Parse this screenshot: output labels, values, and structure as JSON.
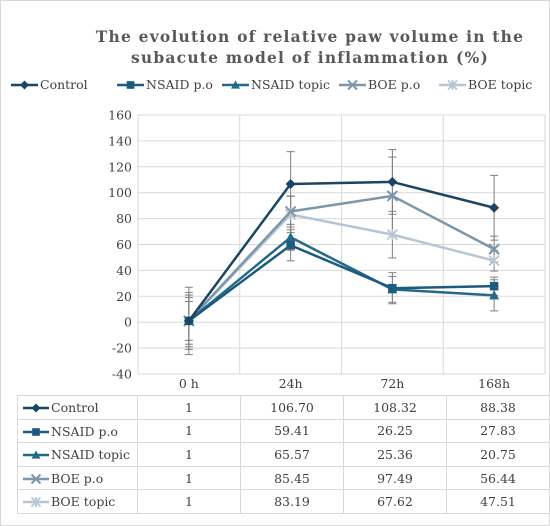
{
  "chart_data": {
    "type": "line",
    "title": "The evolution of relative paw volume in the\nsubacute model of inflammation (%)",
    "categories": [
      "0 h",
      "24h",
      "72h",
      "168h"
    ],
    "ylim": [
      -40,
      160
    ],
    "yticks": [
      "160",
      "140",
      "120",
      "100",
      "80",
      "60",
      "40",
      "20",
      "0",
      "-20",
      "-40"
    ],
    "ytick_values": [
      160,
      140,
      120,
      100,
      80,
      60,
      40,
      20,
      0,
      -20,
      -40
    ],
    "grid": true,
    "legend_position": "top",
    "data_table": true,
    "series": [
      {
        "name": "Control",
        "marker": "diamond",
        "color": "#1b4663",
        "values": [
          1,
          106.7,
          108.32,
          88.38
        ],
        "labels": [
          "1",
          "106.70",
          "108.32",
          "88.38"
        ],
        "error": [
          26,
          25,
          25,
          25
        ]
      },
      {
        "name": "NSAID p.o",
        "marker": "square",
        "color": "#1c5a7e",
        "values": [
          1,
          59.41,
          26.25,
          27.83
        ],
        "labels": [
          "1",
          "59.41",
          "26.25",
          "27.83"
        ],
        "error": [
          22,
          12,
          12,
          7
        ]
      },
      {
        "name": "NSAID topic",
        "marker": "triangle",
        "color": "#236a8a",
        "values": [
          1,
          65.57,
          25.36,
          20.75
        ],
        "labels": [
          "1",
          "65.57",
          "25.36",
          "20.75"
        ],
        "error": [
          20,
          10,
          10,
          12
        ]
      },
      {
        "name": "BOE p.o",
        "marker": "x",
        "color": "#7c96aa",
        "values": [
          1,
          85.45,
          97.49,
          56.44
        ],
        "labels": [
          "1",
          "85.45",
          "97.49",
          "56.44"
        ],
        "error": [
          18,
          12,
          30,
          10
        ]
      },
      {
        "name": "BOE topic",
        "marker": "star",
        "color": "#b7c6d2",
        "values": [
          1,
          83.19,
          67.62,
          47.51
        ],
        "labels": [
          "1",
          "83.19",
          "67.62",
          "47.51"
        ],
        "error": [
          15,
          14,
          18,
          8
        ]
      }
    ]
  }
}
